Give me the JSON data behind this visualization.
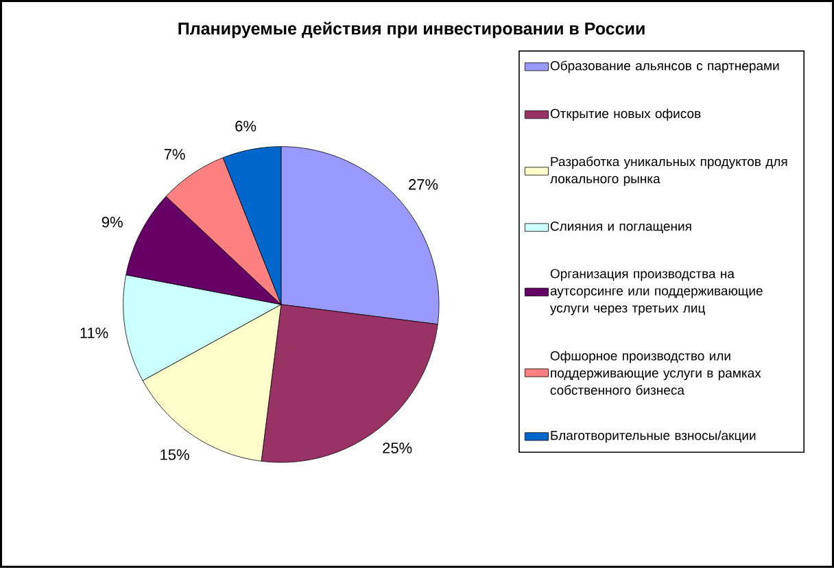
{
  "chart_data": {
    "type": "pie",
    "title": "Планируемые действия при инвестировании в России",
    "categories": [
      "Образование альянсов с партнерами",
      "Открытие новых офисов",
      "Разработка уникальных продуктов для локального рынка",
      "Слияния и поглащения",
      "Организация производства на аутсорсинге или поддерживающие услуги через третьих лиц",
      "Офшорное производство или поддерживающие услуги в рамках собственного бизнеса",
      "Благотворительные взносы/акции"
    ],
    "values": [
      27,
      25,
      15,
      11,
      9,
      7,
      6
    ],
    "value_labels": [
      "27%",
      "25%",
      "15%",
      "11%",
      "9%",
      "7%",
      "6%"
    ],
    "colors": [
      "#9999ff",
      "#993366",
      "#ffffcc",
      "#ccffff",
      "#660066",
      "#ff8080",
      "#0066cc"
    ],
    "legend": "right"
  }
}
